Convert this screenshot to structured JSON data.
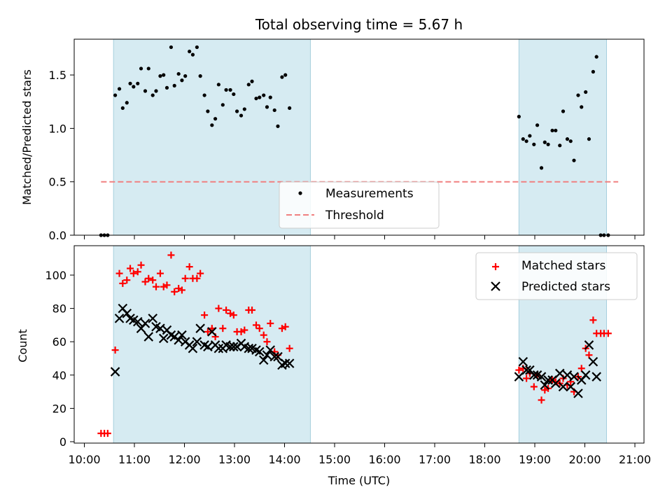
{
  "chart_data": [
    {
      "type": "scatter",
      "title": "Total observing time = 5.67 h",
      "ylabel": "Matched/Predicted stars",
      "xlabel": "",
      "x_unit": "hours UTC",
      "xlim": [
        "10:00",
        "21:00"
      ],
      "ylim": [
        0,
        1.85
      ],
      "y_ticks": [
        "0.0",
        "0.5",
        "1.0",
        "1.5"
      ],
      "shaded_intervals": [
        [
          "10:35",
          "14:31"
        ],
        [
          "18:41",
          "20:26"
        ]
      ],
      "legend": {
        "location": "lower center",
        "entries": [
          "Measurements",
          "Threshold"
        ]
      },
      "threshold": {
        "name": "Threshold",
        "y": 0.5,
        "x_range": [
          "10:20",
          "20:40"
        ],
        "color": "#f08080"
      },
      "series": [
        {
          "name": "Measurements",
          "color": "#000000",
          "points": [
            [
              "10:20",
              0
            ],
            [
              "10:24",
              0
            ],
            [
              "10:28",
              0
            ],
            [
              "10:37",
              1.31
            ],
            [
              "10:42",
              1.37
            ],
            [
              "10:46",
              1.19
            ],
            [
              "10:51",
              1.24
            ],
            [
              "10:55",
              1.42
            ],
            [
              "10:59",
              1.39
            ],
            [
              "11:04",
              1.42
            ],
            [
              "11:08",
              1.56
            ],
            [
              "11:13",
              1.35
            ],
            [
              "11:17",
              1.56
            ],
            [
              "11:22",
              1.31
            ],
            [
              "11:26",
              1.35
            ],
            [
              "11:31",
              1.49
            ],
            [
              "11:35",
              1.5
            ],
            [
              "11:39",
              1.38
            ],
            [
              "11:44",
              1.76
            ],
            [
              "11:48",
              1.4
            ],
            [
              "11:53",
              1.51
            ],
            [
              "11:57",
              1.45
            ],
            [
              "12:01",
              1.49
            ],
            [
              "12:06",
              1.72
            ],
            [
              "12:10",
              1.69
            ],
            [
              "12:15",
              1.76
            ],
            [
              "12:19",
              1.49
            ],
            [
              "12:24",
              1.31
            ],
            [
              "12:28",
              1.16
            ],
            [
              "12:33",
              1.03
            ],
            [
              "12:37",
              1.09
            ],
            [
              "12:41",
              1.41
            ],
            [
              "12:46",
              1.22
            ],
            [
              "12:50",
              1.36
            ],
            [
              "12:55",
              1.36
            ],
            [
              "12:59",
              1.32
            ],
            [
              "13:03",
              1.16
            ],
            [
              "13:08",
              1.12
            ],
            [
              "13:12",
              1.18
            ],
            [
              "13:17",
              1.41
            ],
            [
              "13:21",
              1.44
            ],
            [
              "13:26",
              1.28
            ],
            [
              "13:30",
              1.29
            ],
            [
              "13:35",
              1.31
            ],
            [
              "13:39",
              1.2
            ],
            [
              "13:43",
              1.29
            ],
            [
              "13:48",
              1.17
            ],
            [
              "13:52",
              1.02
            ],
            [
              "13:57",
              1.48
            ],
            [
              "14:01",
              1.5
            ],
            [
              "14:06",
              1.19
            ],
            [
              "18:41",
              1.11
            ],
            [
              "18:46",
              0.9
            ],
            [
              "18:50",
              0.88
            ],
            [
              "18:54",
              0.93
            ],
            [
              "18:59",
              0.85
            ],
            [
              "19:03",
              1.03
            ],
            [
              "19:08",
              0.63
            ],
            [
              "19:12",
              0.87
            ],
            [
              "19:16",
              0.85
            ],
            [
              "19:21",
              0.98
            ],
            [
              "19:25",
              0.98
            ],
            [
              "19:30",
              0.84
            ],
            [
              "19:34",
              1.16
            ],
            [
              "19:39",
              0.9
            ],
            [
              "19:43",
              0.88
            ],
            [
              "19:47",
              0.7
            ],
            [
              "19:52",
              1.31
            ],
            [
              "19:56",
              1.2
            ],
            [
              "20:01",
              1.34
            ],
            [
              "20:05",
              0.9
            ],
            [
              "20:10",
              1.53
            ],
            [
              "20:14",
              1.67
            ],
            [
              "20:19",
              0
            ],
            [
              "20:23",
              0
            ],
            [
              "20:28",
              0
            ]
          ]
        }
      ]
    },
    {
      "type": "scatter",
      "title": "",
      "xlabel": "Time (UTC)",
      "ylabel": "Count",
      "x_unit": "hours UTC",
      "xlim": [
        "10:00",
        "21:00"
      ],
      "ylim": [
        0,
        118
      ],
      "x_ticks": [
        "10:00",
        "11:00",
        "12:00",
        "13:00",
        "14:00",
        "15:00",
        "16:00",
        "17:00",
        "18:00",
        "19:00",
        "20:00",
        "21:00"
      ],
      "y_ticks": [
        "0",
        "20",
        "40",
        "60",
        "80",
        "100"
      ],
      "shaded_intervals": [
        [
          "10:35",
          "14:31"
        ],
        [
          "18:41",
          "20:26"
        ]
      ],
      "legend": {
        "location": "upper right",
        "entries": [
          "Matched stars",
          "Predicted stars"
        ]
      },
      "series": [
        {
          "name": "Matched stars",
          "marker": "+",
          "color": "#ff0000",
          "points": [
            [
              "10:20",
              5
            ],
            [
              "10:24",
              5
            ],
            [
              "10:28",
              5
            ],
            [
              "10:37",
              55
            ],
            [
              "10:42",
              101
            ],
            [
              "10:46",
              95
            ],
            [
              "10:51",
              97
            ],
            [
              "10:55",
              104
            ],
            [
              "10:59",
              101
            ],
            [
              "11:04",
              102
            ],
            [
              "11:08",
              106
            ],
            [
              "11:13",
              96
            ],
            [
              "11:17",
              98
            ],
            [
              "11:22",
              97
            ],
            [
              "11:26",
              93
            ],
            [
              "11:31",
              101
            ],
            [
              "11:35",
              93
            ],
            [
              "11:39",
              94
            ],
            [
              "11:44",
              112
            ],
            [
              "11:48",
              90
            ],
            [
              "11:53",
              92
            ],
            [
              "11:57",
              91
            ],
            [
              "12:01",
              98
            ],
            [
              "12:06",
              105
            ],
            [
              "12:10",
              98
            ],
            [
              "12:15",
              98
            ],
            [
              "12:19",
              101
            ],
            [
              "12:24",
              76
            ],
            [
              "12:28",
              66
            ],
            [
              "12:33",
              68
            ],
            [
              "12:37",
              63
            ],
            [
              "12:41",
              80
            ],
            [
              "12:46",
              68
            ],
            [
              "12:50",
              79
            ],
            [
              "12:55",
              77
            ],
            [
              "12:59",
              76
            ],
            [
              "13:03",
              66
            ],
            [
              "13:08",
              66
            ],
            [
              "13:12",
              67
            ],
            [
              "13:17",
              79
            ],
            [
              "13:21",
              79
            ],
            [
              "13:26",
              70
            ],
            [
              "13:30",
              68
            ],
            [
              "13:35",
              64
            ],
            [
              "13:39",
              60
            ],
            [
              "13:43",
              71
            ],
            [
              "13:48",
              54
            ],
            [
              "13:52",
              52
            ],
            [
              "13:57",
              68
            ],
            [
              "14:01",
              69
            ],
            [
              "14:06",
              56
            ],
            [
              "18:41",
              43
            ],
            [
              "18:46",
              44
            ],
            [
              "18:50",
              38
            ],
            [
              "18:54",
              41
            ],
            [
              "18:59",
              33
            ],
            [
              "19:03",
              40
            ],
            [
              "19:08",
              25
            ],
            [
              "19:12",
              31
            ],
            [
              "19:16",
              32
            ],
            [
              "19:21",
              37
            ],
            [
              "19:25",
              36
            ],
            [
              "19:30",
              35
            ],
            [
              "19:34",
              38
            ],
            [
              "19:39",
              34
            ],
            [
              "19:43",
              36
            ],
            [
              "19:47",
              30
            ],
            [
              "19:52",
              39
            ],
            [
              "19:56",
              44
            ],
            [
              "20:01",
              56
            ],
            [
              "20:05",
              52
            ],
            [
              "20:10",
              73
            ],
            [
              "20:14",
              65
            ],
            [
              "20:19",
              65
            ],
            [
              "20:23",
              65
            ],
            [
              "20:28",
              65
            ]
          ]
        },
        {
          "name": "Predicted stars",
          "marker": "x",
          "color": "#000000",
          "points": [
            [
              "10:37",
              42
            ],
            [
              "10:42",
              74
            ],
            [
              "10:46",
              80
            ],
            [
              "10:51",
              77
            ],
            [
              "10:55",
              74
            ],
            [
              "10:59",
              73
            ],
            [
              "11:04",
              72
            ],
            [
              "11:08",
              68
            ],
            [
              "11:13",
              71
            ],
            [
              "11:17",
              63
            ],
            [
              "11:22",
              74
            ],
            [
              "11:26",
              69
            ],
            [
              "11:31",
              68
            ],
            [
              "11:35",
              62
            ],
            [
              "11:39",
              67
            ],
            [
              "11:44",
              64
            ],
            [
              "11:48",
              63
            ],
            [
              "11:53",
              61
            ],
            [
              "11:57",
              64
            ],
            [
              "12:01",
              60
            ],
            [
              "12:06",
              58
            ],
            [
              "12:10",
              56
            ],
            [
              "12:15",
              60
            ],
            [
              "12:19",
              68
            ],
            [
              "12:24",
              58
            ],
            [
              "12:28",
              57
            ],
            [
              "12:33",
              66
            ],
            [
              "12:37",
              58
            ],
            [
              "12:41",
              56
            ],
            [
              "12:46",
              56
            ],
            [
              "12:50",
              58
            ],
            [
              "12:55",
              57
            ],
            [
              "12:59",
              57
            ],
            [
              "13:03",
              57
            ],
            [
              "13:08",
              59
            ],
            [
              "13:12",
              57
            ],
            [
              "13:17",
              56
            ],
            [
              "13:21",
              56
            ],
            [
              "13:26",
              55
            ],
            [
              "13:30",
              54
            ],
            [
              "13:35",
              49
            ],
            [
              "13:39",
              52
            ],
            [
              "13:43",
              55
            ],
            [
              "13:48",
              51
            ],
            [
              "13:52",
              51
            ],
            [
              "13:57",
              46
            ],
            [
              "14:01",
              47
            ],
            [
              "14:06",
              47
            ],
            [
              "18:41",
              39
            ],
            [
              "18:46",
              48
            ],
            [
              "18:50",
              43
            ],
            [
              "18:54",
              43
            ],
            [
              "18:59",
              40
            ],
            [
              "19:03",
              40
            ],
            [
              "19:08",
              39
            ],
            [
              "19:12",
              34
            ],
            [
              "19:16",
              37
            ],
            [
              "19:21",
              37
            ],
            [
              "19:25",
              35
            ],
            [
              "19:30",
              41
            ],
            [
              "19:34",
              33
            ],
            [
              "19:39",
              40
            ],
            [
              "19:43",
              33
            ],
            [
              "19:47",
              39
            ],
            [
              "19:52",
              29
            ],
            [
              "19:56",
              37
            ],
            [
              "20:01",
              40
            ],
            [
              "20:05",
              58
            ],
            [
              "20:10",
              48
            ],
            [
              "20:14",
              39
            ]
          ]
        }
      ]
    }
  ]
}
